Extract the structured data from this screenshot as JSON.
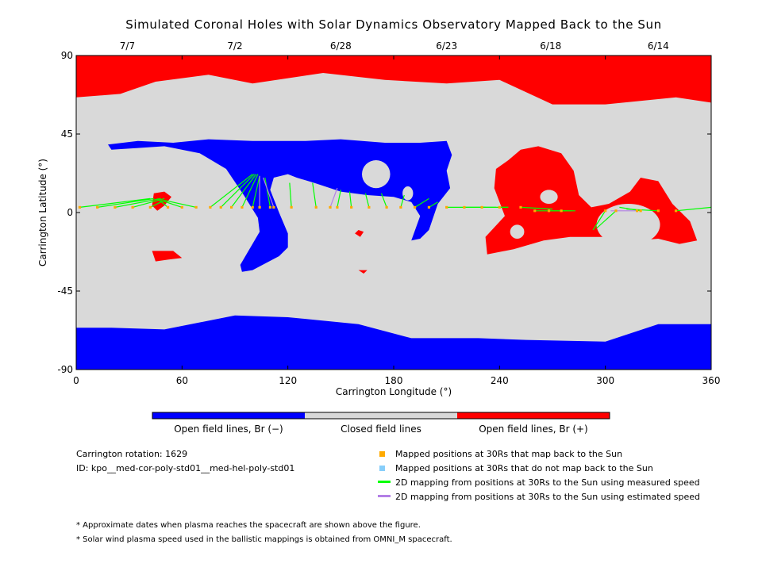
{
  "chart_data": {
    "type": "heatmap",
    "title": "Simulated Coronal Holes with Solar Dynamics Observatory Mapped Back to the Sun",
    "xlabel": "Carrington Longitude (°)",
    "ylabel": "Carrington Latitude (°)",
    "xlim": [
      0,
      360
    ],
    "ylim": [
      -90,
      90
    ],
    "x_ticks": [
      "0",
      "60",
      "120",
      "180",
      "240",
      "300",
      "360"
    ],
    "y_ticks": [
      "90",
      "45",
      "0",
      "-45",
      "-90"
    ],
    "top_date_ticks": [
      {
        "label": "7/7",
        "lon": 29
      },
      {
        "label": "7/2",
        "lon": 90
      },
      {
        "label": "6/28",
        "lon": 150
      },
      {
        "label": "6/23",
        "lon": 210
      },
      {
        "label": "6/18",
        "lon": 269
      },
      {
        "label": "6/14",
        "lon": 330
      }
    ],
    "colors": {
      "open_negative": "#0000ff",
      "closed": "#d9d9d9",
      "open_positive": "#ff0000",
      "mapped_sun": "#ffaa00",
      "not_mapped": "#87cefa",
      "measured_speed": "#00ff00",
      "estimated_speed": "#b37fe6"
    },
    "colorbar_labels": [
      "Open field lines, Br (−)",
      "Closed field lines",
      "Open field lines, Br (+)"
    ],
    "regions": [
      {
        "name": "north-polar-positive",
        "polarity": "+",
        "points": [
          [
            0,
            90
          ],
          [
            360,
            90
          ],
          [
            360,
            63
          ],
          [
            340,
            66
          ],
          [
            300,
            62
          ],
          [
            270,
            62
          ],
          [
            240,
            76
          ],
          [
            210,
            74
          ],
          [
            175,
            76
          ],
          [
            140,
            80
          ],
          [
            100,
            74
          ],
          [
            75,
            79
          ],
          [
            45,
            75
          ],
          [
            25,
            68
          ],
          [
            0,
            66
          ]
        ]
      },
      {
        "name": "south-polar-negative",
        "polarity": "-",
        "points": [
          [
            0,
            -90
          ],
          [
            360,
            -90
          ],
          [
            360,
            -64
          ],
          [
            330,
            -64
          ],
          [
            300,
            -74
          ],
          [
            255,
            -73
          ],
          [
            228,
            -72
          ],
          [
            190,
            -72
          ],
          [
            160,
            -64
          ],
          [
            120,
            -60
          ],
          [
            90,
            -59
          ],
          [
            50,
            -67
          ],
          [
            20,
            -66
          ],
          [
            0,
            -66
          ]
        ]
      },
      {
        "name": "central-negative-hole",
        "polarity": "-",
        "points": [
          [
            18,
            39
          ],
          [
            35,
            41
          ],
          [
            55,
            40
          ],
          [
            75,
            42
          ],
          [
            100,
            41
          ],
          [
            130,
            41
          ],
          [
            150,
            42
          ],
          [
            175,
            40
          ],
          [
            195,
            40
          ],
          [
            210,
            41
          ],
          [
            213,
            33
          ],
          [
            210,
            24
          ],
          [
            212,
            14
          ],
          [
            205,
            5
          ],
          [
            200,
            -10
          ],
          [
            195,
            -15
          ],
          [
            190,
            -16
          ],
          [
            195,
            -2
          ],
          [
            190,
            6
          ],
          [
            180,
            9
          ],
          [
            165,
            10
          ],
          [
            150,
            12
          ],
          [
            135,
            17
          ],
          [
            125,
            20
          ],
          [
            120,
            22
          ],
          [
            112,
            20
          ],
          [
            110,
            13
          ],
          [
            115,
            0
          ],
          [
            120,
            -12
          ],
          [
            120,
            -20
          ],
          [
            115,
            -25
          ],
          [
            100,
            -33
          ],
          [
            94,
            -34
          ],
          [
            93,
            -30
          ],
          [
            104,
            -11
          ],
          [
            103,
            -3
          ],
          [
            95,
            10
          ],
          [
            85,
            25
          ],
          [
            70,
            34
          ],
          [
            50,
            38
          ],
          [
            35,
            37
          ],
          [
            20,
            36
          ]
        ]
      },
      {
        "name": "east-positive-hole",
        "polarity": "+",
        "points": [
          [
            245,
            30
          ],
          [
            252,
            36
          ],
          [
            262,
            38
          ],
          [
            275,
            34
          ],
          [
            282,
            24
          ],
          [
            285,
            10
          ],
          [
            292,
            3
          ],
          [
            302,
            5
          ],
          [
            314,
            12
          ],
          [
            320,
            20
          ],
          [
            330,
            18
          ],
          [
            338,
            5
          ],
          [
            348,
            -5
          ],
          [
            352,
            -16
          ],
          [
            342,
            -18
          ],
          [
            330,
            -15
          ],
          [
            318,
            -16
          ],
          [
            300,
            -14
          ],
          [
            280,
            -14
          ],
          [
            265,
            -16
          ],
          [
            248,
            -21
          ],
          [
            233,
            -24
          ],
          [
            232,
            -14
          ],
          [
            243,
            -2
          ],
          [
            237,
            14
          ],
          [
            238,
            25
          ]
        ]
      },
      {
        "name": "small-positive-patch-a",
        "polarity": "+",
        "points": [
          [
            44,
            11
          ],
          [
            50,
            12
          ],
          [
            54,
            9
          ],
          [
            50,
            4
          ],
          [
            46,
            1
          ],
          [
            43,
            4
          ]
        ]
      },
      {
        "name": "small-positive-patch-b",
        "polarity": "+",
        "points": [
          [
            43,
            -22
          ],
          [
            55,
            -22
          ],
          [
            60,
            -26
          ],
          [
            52,
            -27
          ],
          [
            45,
            -28
          ]
        ]
      },
      {
        "name": "small-positive-patch-c",
        "polarity": "+",
        "points": [
          [
            160,
            -10
          ],
          [
            163,
            -11
          ],
          [
            161,
            -14
          ],
          [
            158,
            -12
          ]
        ]
      },
      {
        "name": "small-positive-patch-d",
        "polarity": "+",
        "points": [
          [
            160,
            -33
          ],
          [
            165,
            -33
          ],
          [
            163,
            -35
          ]
        ]
      }
    ],
    "islands": [
      {
        "in": "central-negative-hole",
        "lon": 170,
        "lat": 22,
        "rlon": 8,
        "rlat": 8
      },
      {
        "in": "central-negative-hole",
        "lon": 188,
        "lat": 11,
        "rlon": 3,
        "rlat": 4
      },
      {
        "in": "east-positive-hole",
        "lon": 268,
        "lat": 9,
        "rlon": 5,
        "rlat": 4
      },
      {
        "in": "east-positive-hole",
        "lon": 313,
        "lat": -7,
        "rlon": 18,
        "rlat": 12
      },
      {
        "in": "east-positive-hole",
        "lon": 250,
        "lat": -11,
        "rlon": 4,
        "rlat": 4
      }
    ],
    "footpoints_measured": [
      {
        "lon": 2,
        "lat": 3,
        "slon": 42,
        "slat": 8
      },
      {
        "lon": 12,
        "lat": 3,
        "slon": 44,
        "slat": 8
      },
      {
        "lon": 22,
        "lat": 3,
        "slon": 48,
        "slat": 8
      },
      {
        "lon": 32,
        "lat": 3,
        "slon": 50,
        "slat": 8
      },
      {
        "lon": 42,
        "lat": 3,
        "slon": 50,
        "slat": 7
      },
      {
        "lon": 52,
        "lat": 3,
        "slon": 46,
        "slat": 8
      },
      {
        "lon": 60,
        "lat": 3,
        "slon": 48,
        "slat": 7
      },
      {
        "lon": 68,
        "lat": 3,
        "slon": 50,
        "slat": 7
      },
      {
        "lon": 76,
        "lat": 3,
        "slon": 100,
        "slat": 22
      },
      {
        "lon": 82,
        "lat": 3,
        "slon": 101,
        "slat": 22
      },
      {
        "lon": 88,
        "lat": 3,
        "slon": 102,
        "slat": 22
      },
      {
        "lon": 94,
        "lat": 3,
        "slon": 103,
        "slat": 22
      },
      {
        "lon": 100,
        "lat": 3,
        "slon": 104,
        "slat": 21
      },
      {
        "lon": 110,
        "lat": 3,
        "slon": 107,
        "slat": 20
      },
      {
        "lon": 122,
        "lat": 3,
        "slon": 121,
        "slat": 17
      },
      {
        "lon": 136,
        "lat": 3,
        "slon": 134,
        "slat": 17
      },
      {
        "lon": 148,
        "lat": 3,
        "slon": 150,
        "slat": 13
      },
      {
        "lon": 156,
        "lat": 3,
        "slon": 155,
        "slat": 12
      },
      {
        "lon": 166,
        "lat": 3,
        "slon": 164,
        "slat": 11
      },
      {
        "lon": 176,
        "lat": 3,
        "slon": 173,
        "slat": 11
      },
      {
        "lon": 184,
        "lat": 3,
        "slon": 186,
        "slat": 10
      },
      {
        "lon": 192,
        "lat": 3,
        "slon": 200,
        "slat": 8
      },
      {
        "lon": 200,
        "lat": 3,
        "slon": 205,
        "slat": 6
      },
      {
        "lon": 210,
        "lat": 3,
        "slon": 232,
        "slat": 3
      },
      {
        "lon": 220,
        "lat": 3,
        "slon": 238,
        "slat": 3
      },
      {
        "lon": 230,
        "lat": 3,
        "slon": 245,
        "slat": 3
      },
      {
        "lon": 240,
        "lat": 3,
        "slon": 245,
        "slat": 3
      },
      {
        "lon": 252,
        "lat": 3,
        "slon": 270,
        "slat": 2
      },
      {
        "lon": 260,
        "lat": 1,
        "slon": 278,
        "slat": 1
      },
      {
        "lon": 268,
        "lat": 1,
        "slon": 281,
        "slat": 1
      },
      {
        "lon": 275,
        "lat": 1,
        "slon": 283,
        "slat": 1
      },
      {
        "lon": 300,
        "lat": 1,
        "slon": 293,
        "slat": -10
      },
      {
        "lon": 306,
        "lat": 1,
        "slon": 295,
        "slat": -9
      },
      {
        "lon": 320,
        "lat": 1,
        "slon": 308,
        "slat": 3
      },
      {
        "lon": 330,
        "lat": 1,
        "slon": 312,
        "slat": 2
      },
      {
        "lon": 340,
        "lat": 1,
        "slon": 360,
        "slat": 3
      }
    ],
    "footpoints_estimated": [
      {
        "lon": 104,
        "lat": 3,
        "slon": 104,
        "slat": 21
      },
      {
        "lon": 112,
        "lat": 3,
        "slon": 106,
        "slat": 20
      },
      {
        "lon": 144,
        "lat": 3,
        "slon": 148,
        "slat": 14
      },
      {
        "lon": 318,
        "lat": 1,
        "slon": 303,
        "slat": 1
      }
    ],
    "legend": [
      "Mapped positions at 30Rs that map back to the Sun",
      "Mapped positions at 30Rs that do not map back to the Sun",
      "2D mapping from positions at 30Rs to the Sun using measured speed",
      "2D mapping from positions at 30Rs to the Sun using estimated speed"
    ]
  },
  "info": {
    "rotation": "Carrington rotation: 1629",
    "id": "ID: kpo__med-cor-poly-std01__med-hel-poly-std01"
  },
  "footnotes": [
    "* Approximate dates when plasma reaches the spacecraft are shown above the figure.",
    "* Solar wind plasma speed used in the ballistic mappings is obtained from OMNI_M spacecraft."
  ]
}
